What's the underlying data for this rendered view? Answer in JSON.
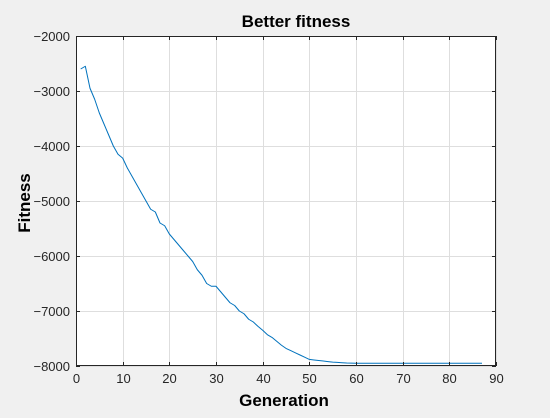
{
  "chart_data": {
    "type": "line",
    "title": "Better fitness",
    "xlabel": "Generation",
    "ylabel": "Fitness",
    "xlim": [
      0,
      90
    ],
    "ylim": [
      -8000,
      -2000
    ],
    "xticks": [
      0,
      10,
      20,
      30,
      40,
      50,
      60,
      70,
      80,
      90
    ],
    "yticks": [
      -8000,
      -7000,
      -6000,
      -5000,
      -4000,
      -3000,
      -2000
    ],
    "xtick_labels": [
      "0",
      "10",
      "20",
      "30",
      "40",
      "50",
      "60",
      "70",
      "80",
      "90"
    ],
    "ytick_labels": [
      "−8000",
      "−7000",
      "−6000",
      "−5000",
      "−4000",
      "−3000",
      "−2000"
    ],
    "grid": true,
    "colors": {
      "line": "#0072bd",
      "grid": "#dedede",
      "axes": "#262626",
      "figure_bg": "#f0f0f0",
      "axes_bg": "#ffffff"
    },
    "series": [
      {
        "x": [
          1,
          2,
          3,
          4,
          5,
          6,
          7,
          8,
          9,
          10,
          11,
          12,
          13,
          14,
          15,
          16,
          17,
          18,
          19,
          20,
          21,
          22,
          23,
          24,
          25,
          26,
          27,
          28,
          29,
          30,
          31,
          32,
          33,
          34,
          35,
          36,
          37,
          38,
          39,
          40,
          41,
          42,
          43,
          44,
          45,
          46,
          47,
          48,
          49,
          50,
          51,
          52,
          53,
          54,
          55,
          56,
          57,
          58,
          59,
          60,
          65,
          70,
          75,
          80,
          85,
          87
        ],
        "y": [
          -2600,
          -2550,
          -2950,
          -3150,
          -3400,
          -3600,
          -3800,
          -4000,
          -4150,
          -4220,
          -4400,
          -4550,
          -4700,
          -4850,
          -5000,
          -5150,
          -5200,
          -5400,
          -5450,
          -5600,
          -5700,
          -5800,
          -5900,
          -6000,
          -6100,
          -6250,
          -6350,
          -6500,
          -6550,
          -6550,
          -6650,
          -6750,
          -6850,
          -6900,
          -7000,
          -7050,
          -7150,
          -7200,
          -7280,
          -7350,
          -7430,
          -7480,
          -7550,
          -7620,
          -7680,
          -7720,
          -7760,
          -7800,
          -7840,
          -7880,
          -7890,
          -7900,
          -7910,
          -7920,
          -7930,
          -7935,
          -7940,
          -7945,
          -7947,
          -7950,
          -7950,
          -7950,
          -7950,
          -7950,
          -7950,
          -7950
        ]
      }
    ]
  }
}
